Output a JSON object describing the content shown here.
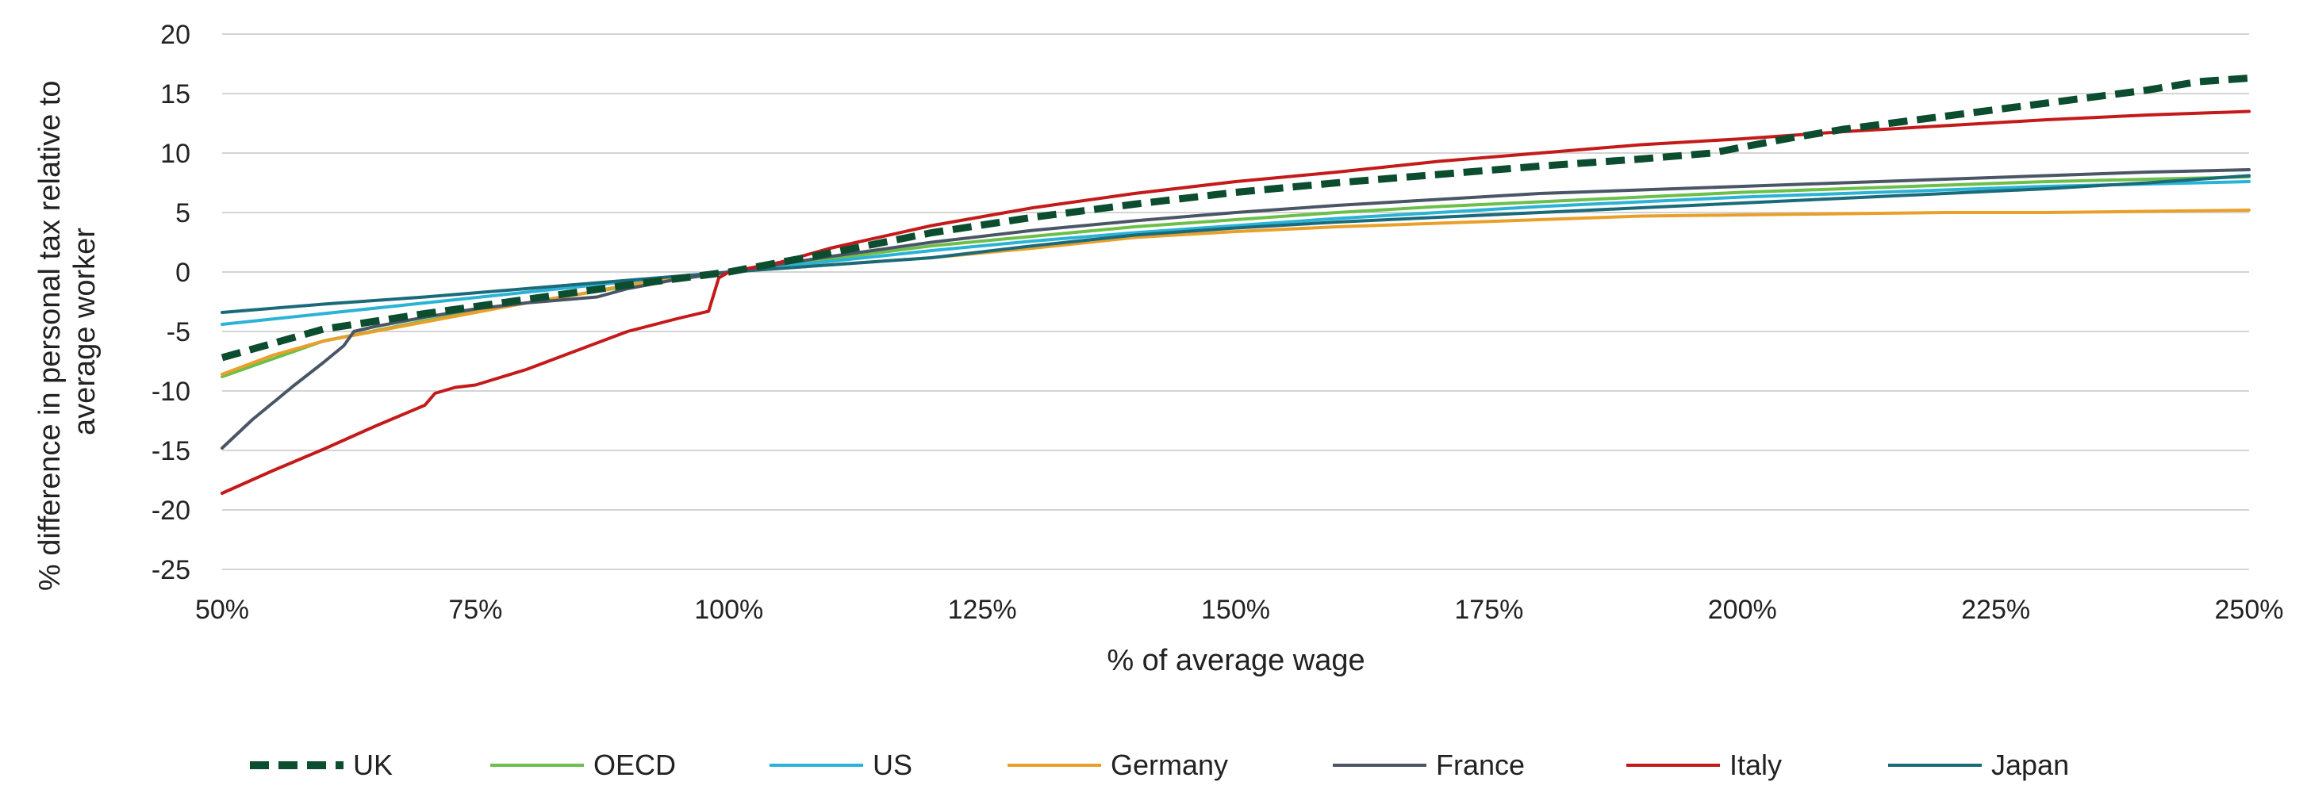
{
  "chart_data": {
    "type": "line",
    "xlabel": "% of average wage",
    "ylabel": [
      "% difference in personal tax relative to",
      "average worker"
    ],
    "xlim": [
      50,
      250
    ],
    "ylim": [
      -25,
      20
    ],
    "x_ticks": [
      50,
      75,
      100,
      125,
      150,
      175,
      200,
      225,
      250
    ],
    "x_tick_labels": [
      "50%",
      "75%",
      "100%",
      "125%",
      "150%",
      "175%",
      "200%",
      "225%",
      "250%"
    ],
    "y_ticks": [
      20,
      15,
      10,
      5,
      0,
      -5,
      -10,
      -15,
      -20,
      -25
    ],
    "y_tick_labels": [
      "20",
      "15",
      "10",
      "5",
      "0",
      "-5",
      "-10",
      "-15",
      "-20",
      "-25"
    ],
    "grid": "horizontal",
    "legend": "bottom",
    "series": [
      {
        "name": "UK",
        "color": "#0b4d2e",
        "dashed": true,
        "width": 9,
        "points": [
          [
            50,
            -7.2
          ],
          [
            60,
            -4.8
          ],
          [
            70,
            -3.5
          ],
          [
            80,
            -2.3
          ],
          [
            90,
            -1.1
          ],
          [
            100,
            0
          ],
          [
            110,
            1.6
          ],
          [
            120,
            3.3
          ],
          [
            130,
            4.6
          ],
          [
            140,
            5.7
          ],
          [
            150,
            6.7
          ],
          [
            160,
            7.5
          ],
          [
            170,
            8.2
          ],
          [
            180,
            8.9
          ],
          [
            190,
            9.5
          ],
          [
            197,
            10.0
          ],
          [
            200,
            10.5
          ],
          [
            205,
            11.3
          ],
          [
            210,
            12.0
          ],
          [
            220,
            13.1
          ],
          [
            230,
            14.2
          ],
          [
            240,
            15.3
          ],
          [
            245,
            16.0
          ],
          [
            250,
            16.3
          ]
        ]
      },
      {
        "name": "OECD",
        "color": "#6cbf4b",
        "dashed": false,
        "width": 4,
        "points": [
          [
            50,
            -8.8
          ],
          [
            55,
            -7.3
          ],
          [
            60,
            -5.8
          ],
          [
            70,
            -4.1
          ],
          [
            80,
            -2.6
          ],
          [
            90,
            -1.2
          ],
          [
            100,
            0
          ],
          [
            110,
            1.1
          ],
          [
            120,
            2.2
          ],
          [
            130,
            3.0
          ],
          [
            140,
            3.8
          ],
          [
            150,
            4.4
          ],
          [
            160,
            5.0
          ],
          [
            170,
            5.5
          ],
          [
            180,
            5.9
          ],
          [
            190,
            6.3
          ],
          [
            200,
            6.7
          ],
          [
            210,
            7.0
          ],
          [
            220,
            7.3
          ],
          [
            230,
            7.6
          ],
          [
            240,
            7.8
          ],
          [
            250,
            8.0
          ]
        ]
      },
      {
        "name": "US",
        "color": "#2bb3d6",
        "dashed": false,
        "width": 4,
        "points": [
          [
            50,
            -4.4
          ],
          [
            60,
            -3.5
          ],
          [
            70,
            -2.6
          ],
          [
            80,
            -1.7
          ],
          [
            90,
            -0.8
          ],
          [
            100,
            0
          ],
          [
            110,
            0.9
          ],
          [
            120,
            1.8
          ],
          [
            130,
            2.6
          ],
          [
            140,
            3.3
          ],
          [
            150,
            3.9
          ],
          [
            160,
            4.5
          ],
          [
            170,
            5.0
          ],
          [
            180,
            5.5
          ],
          [
            190,
            5.9
          ],
          [
            200,
            6.3
          ],
          [
            210,
            6.6
          ],
          [
            220,
            6.9
          ],
          [
            230,
            7.2
          ],
          [
            240,
            7.4
          ],
          [
            250,
            7.6
          ]
        ]
      },
      {
        "name": "Germany",
        "color": "#e9a02a",
        "dashed": false,
        "width": 4,
        "points": [
          [
            50,
            -8.6
          ],
          [
            55,
            -7.0
          ],
          [
            60,
            -5.8
          ],
          [
            65,
            -5.0
          ],
          [
            70,
            -4.2
          ],
          [
            75,
            -3.4
          ],
          [
            80,
            -2.6
          ],
          [
            85,
            -1.9
          ],
          [
            90,
            -1.1
          ],
          [
            95,
            -0.5
          ],
          [
            100,
            0
          ],
          [
            110,
            0.6
          ],
          [
            120,
            1.2
          ],
          [
            130,
            2.0
          ],
          [
            140,
            2.9
          ],
          [
            150,
            3.4
          ],
          [
            160,
            3.8
          ],
          [
            170,
            4.1
          ],
          [
            180,
            4.4
          ],
          [
            190,
            4.7
          ],
          [
            200,
            4.8
          ],
          [
            210,
            4.9
          ],
          [
            220,
            5.0
          ],
          [
            230,
            5.0
          ],
          [
            240,
            5.1
          ],
          [
            250,
            5.2
          ]
        ]
      },
      {
        "name": "France",
        "color": "#4a5566",
        "dashed": false,
        "width": 4,
        "points": [
          [
            50,
            -14.8
          ],
          [
            51,
            -14.0
          ],
          [
            53,
            -12.4
          ],
          [
            55,
            -11.0
          ],
          [
            57,
            -9.6
          ],
          [
            60,
            -7.6
          ],
          [
            62,
            -6.2
          ],
          [
            63,
            -5.0
          ],
          [
            65,
            -4.6
          ],
          [
            70,
            -3.8
          ],
          [
            75,
            -3.1
          ],
          [
            80,
            -2.6
          ],
          [
            87,
            -2.1
          ],
          [
            90,
            -1.4
          ],
          [
            95,
            -0.6
          ],
          [
            100,
            0
          ],
          [
            110,
            1.3
          ],
          [
            120,
            2.5
          ],
          [
            130,
            3.5
          ],
          [
            140,
            4.3
          ],
          [
            150,
            5.0
          ],
          [
            160,
            5.6
          ],
          [
            170,
            6.1
          ],
          [
            180,
            6.6
          ],
          [
            190,
            6.9
          ],
          [
            200,
            7.2
          ],
          [
            210,
            7.5
          ],
          [
            220,
            7.8
          ],
          [
            230,
            8.1
          ],
          [
            240,
            8.4
          ],
          [
            250,
            8.6
          ]
        ]
      },
      {
        "name": "Italy",
        "color": "#c41a1a",
        "dashed": false,
        "width": 4,
        "points": [
          [
            50,
            -18.6
          ],
          [
            55,
            -16.7
          ],
          [
            60,
            -14.9
          ],
          [
            65,
            -13.0
          ],
          [
            70,
            -11.2
          ],
          [
            71,
            -10.2
          ],
          [
            73,
            -9.7
          ],
          [
            75,
            -9.5
          ],
          [
            80,
            -8.2
          ],
          [
            85,
            -6.6
          ],
          [
            90,
            -5.0
          ],
          [
            95,
            -3.9
          ],
          [
            98,
            -3.3
          ],
          [
            99,
            -0.5
          ],
          [
            100,
            0
          ],
          [
            105,
            0.8
          ],
          [
            110,
            2.0
          ],
          [
            120,
            3.9
          ],
          [
            130,
            5.4
          ],
          [
            140,
            6.6
          ],
          [
            150,
            7.6
          ],
          [
            160,
            8.4
          ],
          [
            170,
            9.3
          ],
          [
            180,
            10.0
          ],
          [
            190,
            10.7
          ],
          [
            200,
            11.2
          ],
          [
            210,
            11.8
          ],
          [
            220,
            12.3
          ],
          [
            230,
            12.8
          ],
          [
            240,
            13.2
          ],
          [
            250,
            13.5
          ]
        ]
      },
      {
        "name": "Japan",
        "color": "#1a6b7a",
        "dashed": false,
        "width": 4,
        "points": [
          [
            50,
            -3.4
          ],
          [
            60,
            -2.7
          ],
          [
            70,
            -2.1
          ],
          [
            80,
            -1.4
          ],
          [
            90,
            -0.7
          ],
          [
            100,
            0
          ],
          [
            110,
            0.6
          ],
          [
            120,
            1.2
          ],
          [
            130,
            2.2
          ],
          [
            140,
            3.1
          ],
          [
            150,
            3.7
          ],
          [
            160,
            4.2
          ],
          [
            170,
            4.6
          ],
          [
            180,
            5.0
          ],
          [
            190,
            5.4
          ],
          [
            200,
            5.8
          ],
          [
            210,
            6.2
          ],
          [
            220,
            6.6
          ],
          [
            230,
            7.0
          ],
          [
            240,
            7.5
          ],
          [
            250,
            8.1
          ]
        ]
      }
    ]
  }
}
